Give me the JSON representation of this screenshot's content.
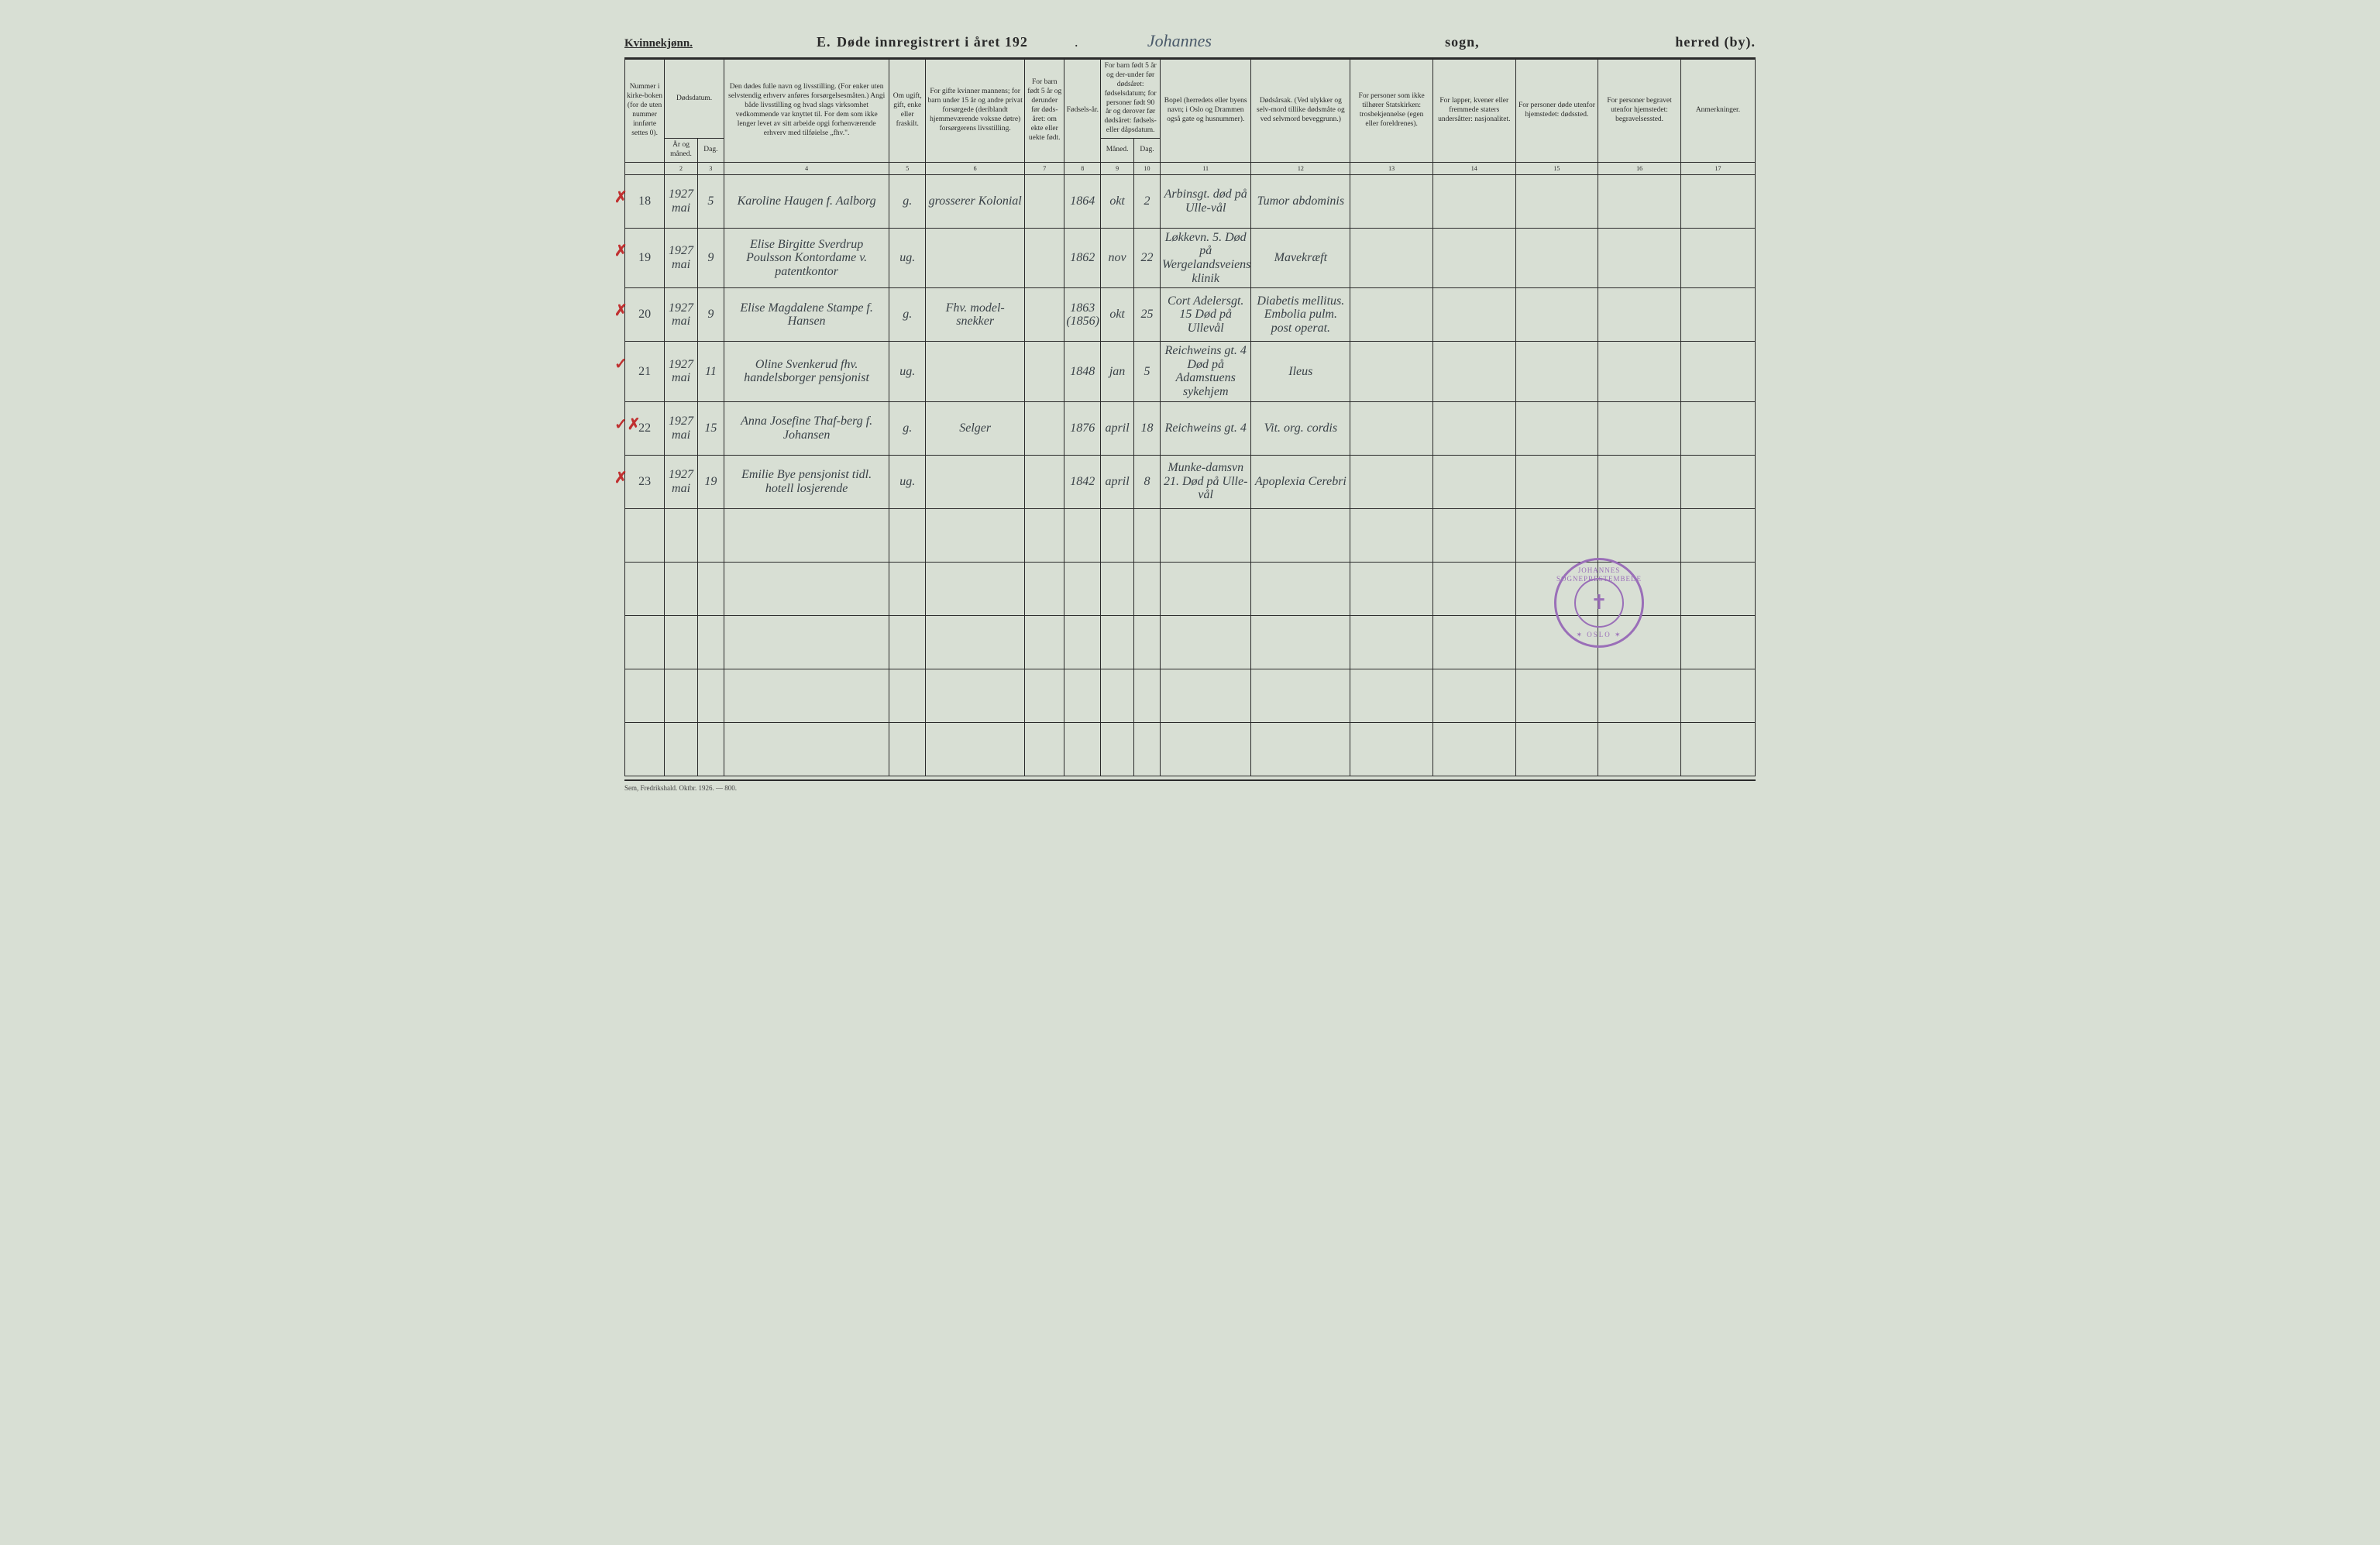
{
  "header": {
    "gender": "Kvinnekjønn.",
    "section_letter": "E.",
    "title_prefix": "Døde innregistrert i året 192",
    "year_suffix": ".",
    "sogn_handwritten": "Johannes",
    "sogn_label": "sogn,",
    "herred_label": "herred (by)."
  },
  "columns": {
    "c1": "Nummer i kirke-boken (for de uten nummer innførte settes 0).",
    "c2_top": "Dødsdatum.",
    "c2a": "År og måned.",
    "c2b": "Dag.",
    "c4": "Den dødes fulle navn og livsstilling. (For enker uten selvstendig erhverv anføres forsørgelsesmåten.) Angi både livsstilling og hvad slags virksomhet vedkommende var knyttet til. For dem som ikke lenger levet av sitt arbeide opgi forhenværende erhverv med tilføielse „fhv.\".",
    "c5": "Om ugift, gift, enke eller fraskilt.",
    "c6": "For gifte kvinner mannens; for barn under 15 år og andre privat forsørgede (deriblandt hjemmeværende voksne døtre) forsørgerens livsstilling.",
    "c7": "For barn født 5 år og derunder før døds-året: om ekte eller uekte født.",
    "c8": "Fødsels-år.",
    "c9_top": "For barn født 5 år og der-under før dødsåret: fødselsdatum; for personer født 90 år og derover før dødsåret: fødsels- eller dåpsdatum.",
    "c9a": "Måned.",
    "c9b": "Dag.",
    "c11": "Bopel (herredets eller byens navn; i Oslo og Drammen også gate og husnummer).",
    "c12": "Dødsårsak. (Ved ulykker og selv-mord tillike dødsmåte og ved selvmord beveggrunn.)",
    "c13": "For personer som ikke tilhører Statskirken: trosbekjennelse (egen eller foreldrenes).",
    "c14": "For lapper, kvener eller fremmede staters undersåtter: nasjonalitet.",
    "c15": "For personer døde utenfor hjemstedet: dødssted.",
    "c16": "For personer begravet utenfor hjemstedet: begravelsessted.",
    "c17": "Anmerkninger."
  },
  "colnums": [
    "",
    "2",
    "3",
    "4",
    "5",
    "6",
    "7",
    "8",
    "9",
    "10",
    "11",
    "12",
    "13",
    "14",
    "15",
    "16",
    "17"
  ],
  "rows": [
    {
      "mark": "✗",
      "num": "18",
      "yearmonth": "1927 mai",
      "day": "5",
      "name": "Karoline Haugen f. Aalborg",
      "status": "g.",
      "provider": "grosserer Kolonial",
      "c7": "",
      "birthyear": "1864",
      "bmonth": "okt",
      "bday": "2",
      "residence": "Arbinsgt. død på Ulle-vål",
      "cause": "Tumor abdominis",
      "c13": "",
      "c14": "",
      "c15": "",
      "c16": "",
      "c17": ""
    },
    {
      "mark": "✗",
      "num": "19",
      "yearmonth": "1927 mai",
      "day": "9",
      "name": "Elise Birgitte Sverdrup Poulsson Kontordame v. patentkontor",
      "status": "ug.",
      "provider": "",
      "c7": "",
      "birthyear": "1862",
      "bmonth": "nov",
      "bday": "22",
      "residence": "Løkkevn. 5. Død på Wergelandsveiens klinik",
      "cause": "Mavekræft",
      "c13": "",
      "c14": "",
      "c15": "",
      "c16": "",
      "c17": ""
    },
    {
      "mark": "✗",
      "num": "20",
      "yearmonth": "1927 mai",
      "day": "9",
      "name": "Elise Magdalene Stampe f. Hansen",
      "status": "g.",
      "provider": "Fhv. model-snekker",
      "c7": "",
      "birthyear": "1863 (1856)",
      "bmonth": "okt",
      "bday": "25",
      "residence": "Cort Adelersgt. 15 Død på Ullevål",
      "cause": "Diabetis mellitus. Embolia pulm. post operat.",
      "c13": "",
      "c14": "",
      "c15": "",
      "c16": "",
      "c17": ""
    },
    {
      "mark": "✓",
      "num": "21",
      "yearmonth": "1927 mai",
      "day": "11",
      "name": "Oline Svenkerud fhv. handelsborger pensjonist",
      "status": "ug.",
      "provider": "",
      "c7": "",
      "birthyear": "1848",
      "bmonth": "jan",
      "bday": "5",
      "residence": "Reichweins gt. 4 Død på Adamstuens sykehjem",
      "cause": "Ileus",
      "c13": "",
      "c14": "",
      "c15": "",
      "c16": "",
      "c17": ""
    },
    {
      "mark": "✓✗",
      "num": "22",
      "yearmonth": "1927 mai",
      "day": "15",
      "name": "Anna Josefine Thaf-berg f. Johansen",
      "status": "g.",
      "provider": "Selger",
      "c7": "",
      "birthyear": "1876",
      "bmonth": "april",
      "bday": "18",
      "residence": "Reichweins gt. 4",
      "cause": "Vit. org. cordis",
      "c13": "",
      "c14": "",
      "c15": "",
      "c16": "",
      "c17": ""
    },
    {
      "mark": "✗",
      "num": "23",
      "yearmonth": "1927 mai",
      "day": "19",
      "name": "Emilie Bye pensjonist tidl. hotell losjerende",
      "status": "ug.",
      "provider": "",
      "c7": "",
      "birthyear": "1842",
      "bmonth": "april",
      "bday": "8",
      "residence": "Munke-damsvn 21. Død på Ulle-vål",
      "cause": "Apoplexia Cerebri",
      "c13": "",
      "c14": "",
      "c15": "",
      "c16": "",
      "c17": ""
    }
  ],
  "empty_rows": 5,
  "footer": "Sem, Fredrikshald. Oktbr. 1926. — 800.",
  "stamp": {
    "top": "JOHANNES SOGNEPRESTEMBEDE",
    "bottom": "✶ OSLO ✶",
    "symbol": "✝"
  },
  "colwidths": {
    "c1": 48,
    "c2a": 40,
    "c2b": 32,
    "c4": 200,
    "c5": 44,
    "c6": 120,
    "c7": 48,
    "c8": 44,
    "c9a": 40,
    "c9b": 32,
    "c11": 110,
    "c12": 120,
    "c13": 100,
    "c14": 100,
    "c15": 100,
    "c16": 100,
    "c17": 90
  },
  "colors": {
    "page_bg": "#d8dfd4",
    "ink": "#2a2a2a",
    "handwriting": "#3a4248",
    "redmark": "#c03030",
    "stamp": "#9a6fb8"
  }
}
